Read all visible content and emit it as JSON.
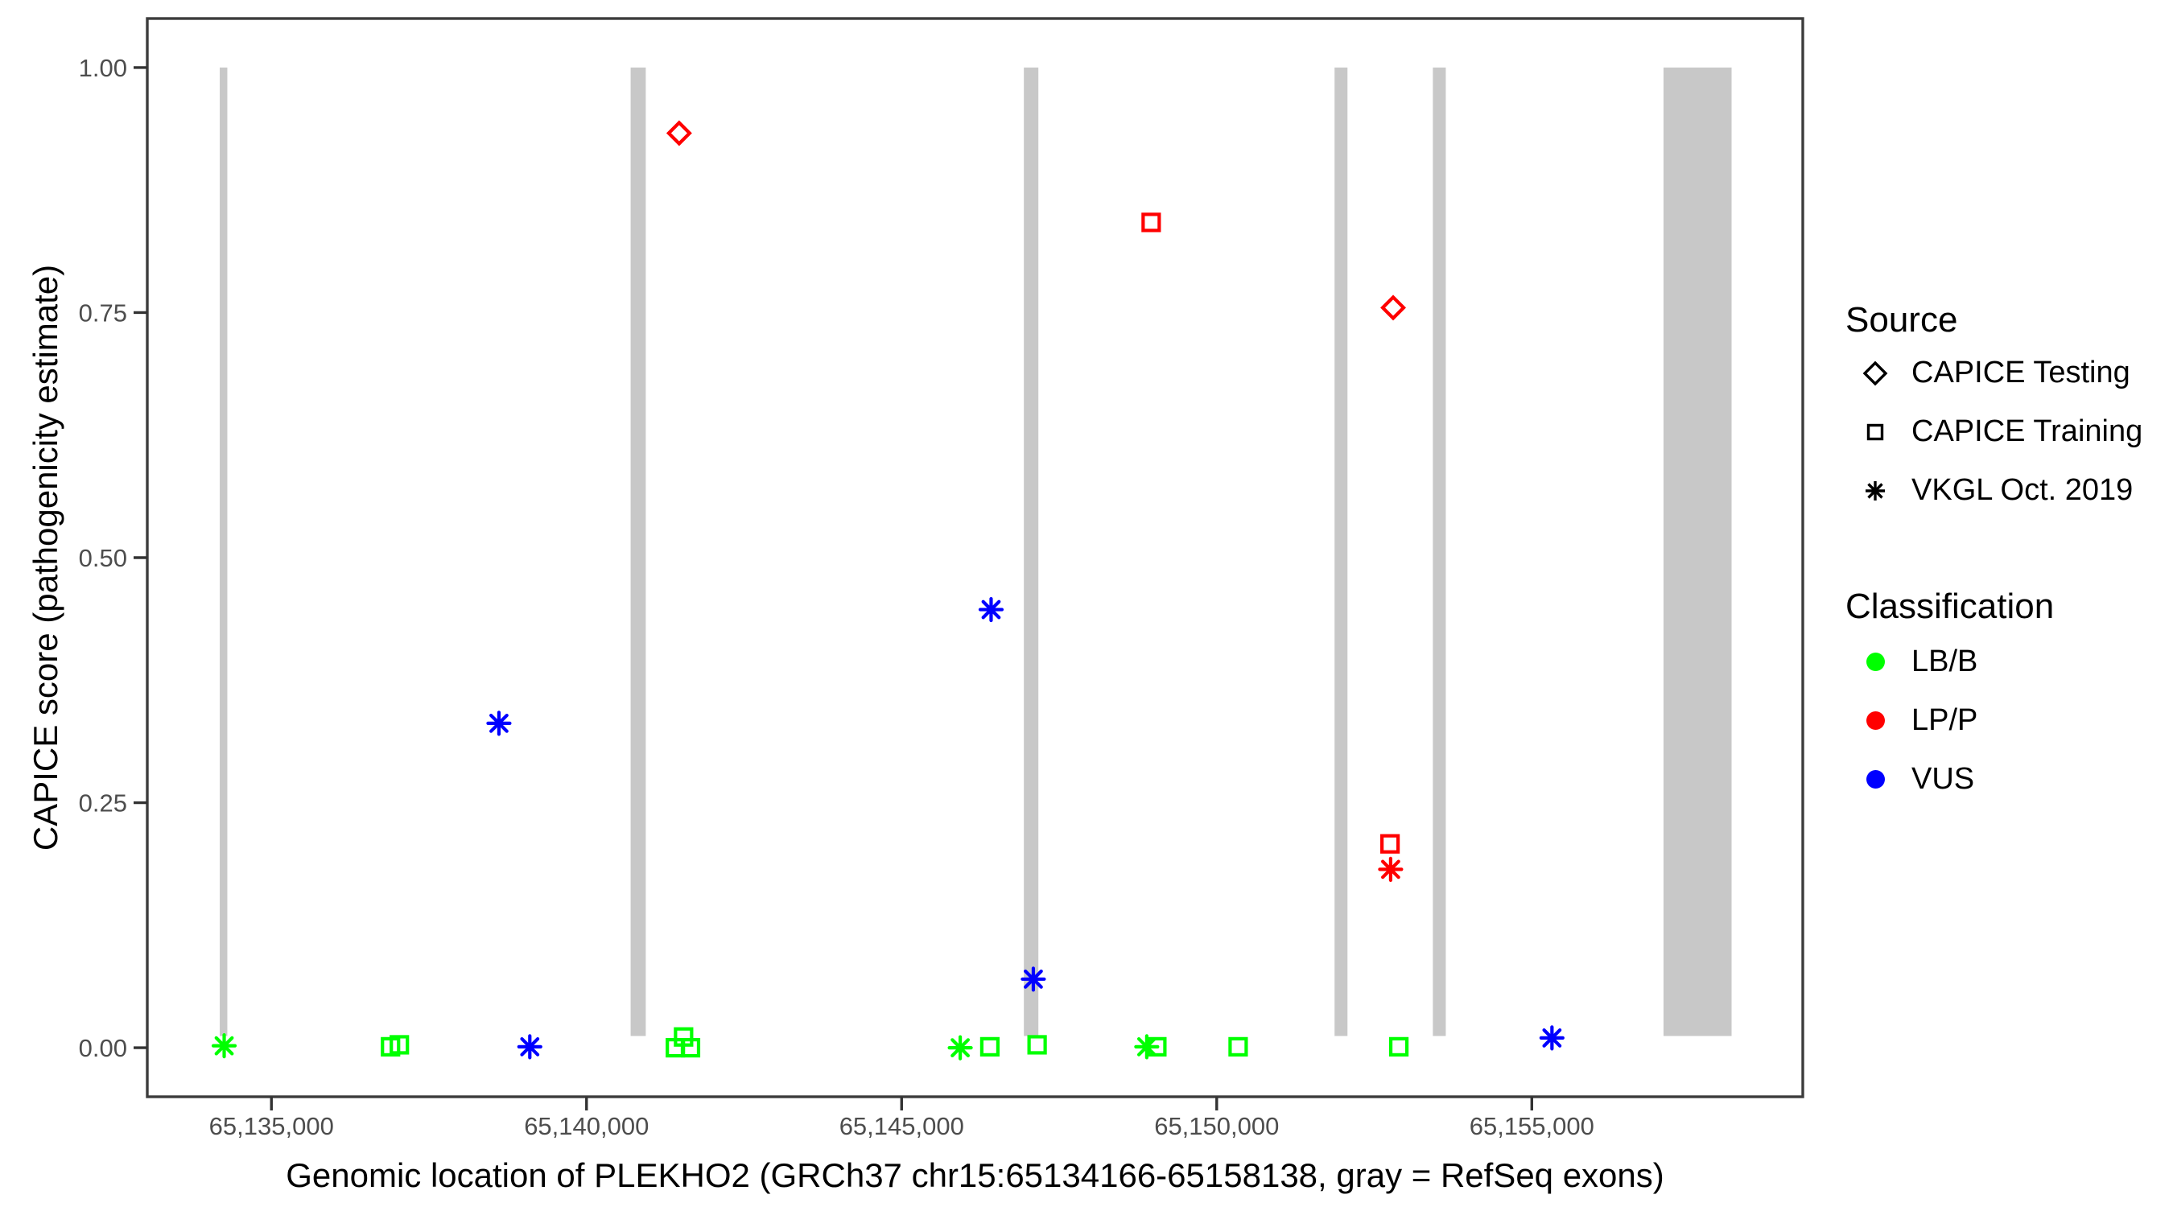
{
  "chart_data": {
    "type": "scatter",
    "title": "",
    "xlabel": "Genomic location of PLEKHO2 (GRCh37 chr15:65134166-65158138, gray = RefSeq exons)",
    "ylabel": "CAPICE score (pathogenicity estimate)",
    "xlim": [
      65133030,
      65159300
    ],
    "ylim": [
      -0.05,
      1.05
    ],
    "grid": "off",
    "legend_position": "right",
    "x_ticks": [
      {
        "value": 65135000,
        "label": "65,135,000"
      },
      {
        "value": 65140000,
        "label": "65,140,000"
      },
      {
        "value": 65145000,
        "label": "65,145,000"
      },
      {
        "value": 65150000,
        "label": "65,150,000"
      },
      {
        "value": 65155000,
        "label": "65,155,000"
      }
    ],
    "y_ticks": [
      {
        "value": 0.0,
        "label": "0.00"
      },
      {
        "value": 0.25,
        "label": "0.25"
      },
      {
        "value": 0.5,
        "label": "0.50"
      },
      {
        "value": 0.75,
        "label": "0.75"
      },
      {
        "value": 1.0,
        "label": "1.00"
      }
    ],
    "exon_color": "#C8C8C8",
    "exon_y_range": [
      0.012,
      1.0
    ],
    "exons": [
      {
        "start": 65134180,
        "end": 65134300
      },
      {
        "start": 65140700,
        "end": 65140940
      },
      {
        "start": 65146940,
        "end": 65147170
      },
      {
        "start": 65151870,
        "end": 65152075
      },
      {
        "start": 65153430,
        "end": 65153635
      },
      {
        "start": 65157090,
        "end": 65158170
      }
    ],
    "classification_colors": {
      "LB/B": "#00FF00",
      "LP/P": "#FF0000",
      "VUS": "#0000FF"
    },
    "series": [
      {
        "name": "CAPICE Testing",
        "shape": "diamond",
        "points": [
          {
            "pos": 65141470,
            "score": 0.933,
            "class": "LP/P"
          },
          {
            "pos": 65152800,
            "score": 0.755,
            "class": "LP/P"
          }
        ]
      },
      {
        "name": "CAPICE Training",
        "shape": "square",
        "points": [
          {
            "pos": 65148960,
            "score": 0.842,
            "class": "LP/P"
          },
          {
            "pos": 65152750,
            "score": 0.208,
            "class": "LP/P"
          },
          {
            "pos": 65136890,
            "score": 0.001,
            "class": "LB/B"
          },
          {
            "pos": 65137030,
            "score": 0.003,
            "class": "LB/B"
          },
          {
            "pos": 65141410,
            "score": 0.0,
            "class": "LB/B"
          },
          {
            "pos": 65141540,
            "score": 0.011,
            "class": "LB/B"
          },
          {
            "pos": 65141650,
            "score": 0.0,
            "class": "LB/B"
          },
          {
            "pos": 65146400,
            "score": 0.001,
            "class": "LB/B"
          },
          {
            "pos": 65147150,
            "score": 0.003,
            "class": "LB/B"
          },
          {
            "pos": 65149050,
            "score": 0.001,
            "class": "LB/B"
          },
          {
            "pos": 65150340,
            "score": 0.001,
            "class": "LB/B"
          },
          {
            "pos": 65152890,
            "score": 0.001,
            "class": "LB/B"
          }
        ]
      },
      {
        "name": "VKGL Oct. 2019",
        "shape": "asterisk",
        "points": [
          {
            "pos": 65134250,
            "score": 0.002,
            "class": "LB/B"
          },
          {
            "pos": 65145930,
            "score": 0.0,
            "class": "LB/B"
          },
          {
            "pos": 65148890,
            "score": 0.001,
            "class": "LB/B"
          },
          {
            "pos": 65138610,
            "score": 0.331,
            "class": "VUS"
          },
          {
            "pos": 65139100,
            "score": 0.001,
            "class": "VUS"
          },
          {
            "pos": 65146420,
            "score": 0.447,
            "class": "VUS"
          },
          {
            "pos": 65147090,
            "score": 0.07,
            "class": "VUS"
          },
          {
            "pos": 65155320,
            "score": 0.01,
            "class": "VUS"
          },
          {
            "pos": 65152760,
            "score": 0.182,
            "class": "LP/P"
          }
        ]
      }
    ]
  },
  "legend": {
    "source": {
      "title": "Source",
      "items": [
        {
          "label": "CAPICE Testing",
          "shape": "diamond"
        },
        {
          "label": "CAPICE Training",
          "shape": "square"
        },
        {
          "label": "VKGL Oct. 2019",
          "shape": "asterisk"
        }
      ]
    },
    "classification": {
      "title": "Classification",
      "items": [
        {
          "label": "LB/B",
          "color_key": "LB/B"
        },
        {
          "label": "LP/P",
          "color_key": "LP/P"
        },
        {
          "label": "VUS",
          "color_key": "VUS"
        }
      ]
    }
  }
}
